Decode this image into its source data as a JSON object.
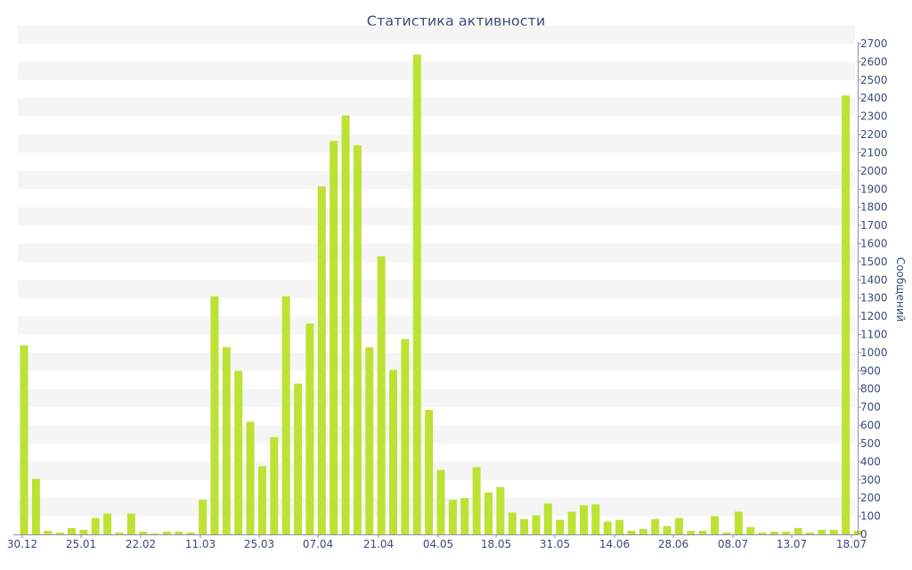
{
  "chart_data": {
    "type": "bar",
    "title": "Статистика активности",
    "ylabel": "Сообщений",
    "xlabel": "",
    "ylim": [
      0,
      2700
    ],
    "ytick_step": 100,
    "x_tick_labels": [
      "30.12",
      "25.01",
      "22.02",
      "11.03",
      "25.03",
      "07.04",
      "21.04",
      "04.05",
      "18.05",
      "31.05",
      "14.06",
      "28.06",
      "08.07",
      "13.07",
      "18.07"
    ],
    "values": [
      1040,
      305,
      20,
      10,
      35,
      25,
      90,
      115,
      10,
      115,
      15,
      5,
      15,
      15,
      10,
      190,
      1310,
      1030,
      900,
      620,
      375,
      535,
      1310,
      830,
      1160,
      1915,
      2165,
      2305,
      2140,
      1030,
      1530,
      905,
      1075,
      2640,
      685,
      355,
      190,
      200,
      370,
      230,
      260,
      120,
      85,
      105,
      170,
      80,
      125,
      160,
      165,
      70,
      80,
      20,
      30,
      85,
      45,
      90,
      20,
      20,
      100,
      10,
      125,
      40,
      10,
      15,
      15,
      35,
      10,
      25,
      25,
      2415,
      20
    ],
    "colors": {
      "bar": "#bde234",
      "band": "#f5f5f5",
      "text": "#3a4a7a",
      "axis": "#8a8fa8"
    },
    "grid": true,
    "legend": "none"
  }
}
